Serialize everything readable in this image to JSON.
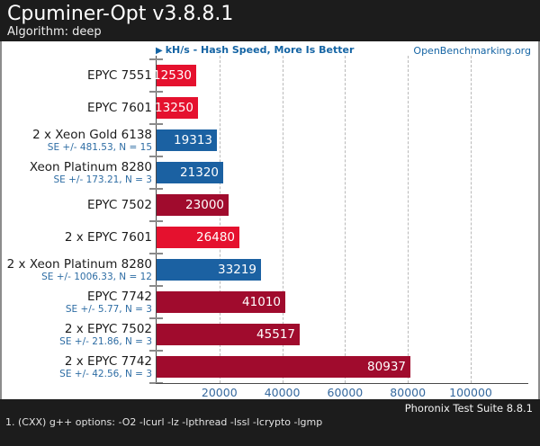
{
  "header": {
    "title": "Cpuminer-Opt v3.8.8.1",
    "subtitle": "Algorithm: deep"
  },
  "legend": {
    "label": "kH/s - Hash Speed, More Is Better",
    "site_link": "OpenBenchmarking.org"
  },
  "chart_data": {
    "type": "bar",
    "orientation": "horizontal",
    "title": "Cpuminer-Opt v3.8.8.1",
    "subtitle": "Algorithm: deep",
    "xlabel": "kH/s - Hash Speed, More Is Better",
    "ylabel": "",
    "xlim": [
      0,
      118500
    ],
    "xticks": [
      20000,
      40000,
      60000,
      80000,
      100000
    ],
    "grid": "dashed-vertical",
    "bars": [
      {
        "label": "EPYC 7551",
        "value": 12530,
        "se": "",
        "color_key": "red"
      },
      {
        "label": "EPYC 7601",
        "value": 13250,
        "se": "",
        "color_key": "red"
      },
      {
        "label": "2 x Xeon Gold 6138",
        "value": 19313,
        "se": "SE +/- 481.53, N = 15",
        "color_key": "blue"
      },
      {
        "label": "Xeon Platinum 8280",
        "value": 21320,
        "se": "SE +/- 173.21, N = 3",
        "color_key": "blue"
      },
      {
        "label": "EPYC 7502",
        "value": 23000,
        "se": "",
        "color_key": "darkred"
      },
      {
        "label": "2 x EPYC 7601",
        "value": 26480,
        "se": "",
        "color_key": "red"
      },
      {
        "label": "2 x Xeon Platinum 8280",
        "value": 33219,
        "se": "SE +/- 1006.33, N = 12",
        "color_key": "blue"
      },
      {
        "label": "EPYC 7742",
        "value": 41010,
        "se": "SE +/- 5.77, N = 3",
        "color_key": "darkred"
      },
      {
        "label": "2 x EPYC 7502",
        "value": 45517,
        "se": "SE +/- 21.86, N = 3",
        "color_key": "darkred"
      },
      {
        "label": "2 x EPYC 7742",
        "value": 80937,
        "se": "SE +/- 42.56, N = 3",
        "color_key": "darkred"
      }
    ],
    "colors": {
      "red": "#e5112e",
      "darkred": "#a00b2d",
      "blue": "#1b61a2",
      "axis_text": "#36699e",
      "se_text": "#2e6da4",
      "legend_text": "#1464a4",
      "header_bg": "#1c1c1c",
      "plot_bg": "#ffffff"
    }
  },
  "footer": {
    "note": "1. (CXX) g++ options: -O2 -lcurl -lz -lpthread -lssl -lcrypto -lgmp",
    "suite": "Phoronix Test Suite 8.8.1"
  }
}
